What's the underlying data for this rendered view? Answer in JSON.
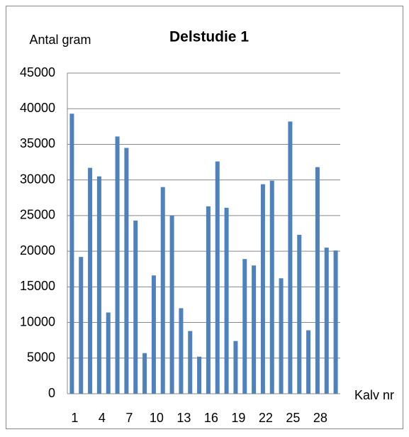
{
  "chart_data": {
    "type": "bar",
    "title": "Delstudie 1",
    "y_label": "Antal gram",
    "x_label": "Kalv nr",
    "categories": [
      1,
      null,
      null,
      4,
      null,
      null,
      7,
      null,
      null,
      10,
      null,
      null,
      13,
      null,
      null,
      16,
      null,
      null,
      19,
      null,
      null,
      22,
      null,
      null,
      25,
      null,
      null,
      28,
      null,
      null
    ],
    "values": [
      39300,
      19200,
      31700,
      30500,
      11400,
      36100,
      34500,
      24300,
      5700,
      16600,
      29000,
      25000,
      12000,
      8800,
      5200,
      26300,
      32600,
      26100,
      7400,
      18900,
      18000,
      29400,
      29900,
      16200,
      38200,
      22300,
      8900,
      31800,
      20500,
      20100
    ],
    "color": "#4f81bd",
    "ylim": [
      0,
      45000
    ],
    "yticks": [
      0,
      5000,
      10000,
      15000,
      20000,
      25000,
      30000,
      35000,
      40000,
      45000
    ],
    "grid": true
  }
}
